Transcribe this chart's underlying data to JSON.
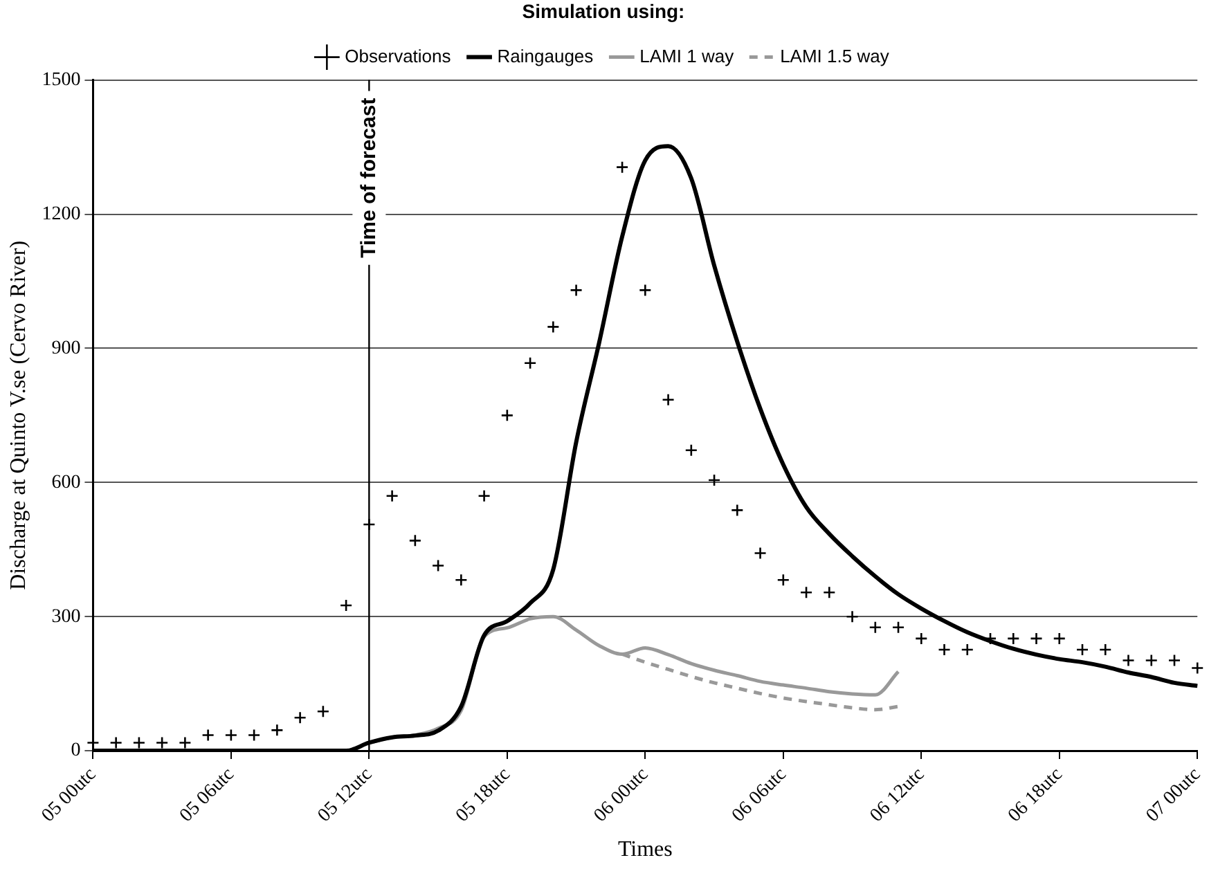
{
  "chart_data": {
    "type": "line",
    "legend_title": "Simulation using:",
    "xlabel": "Times",
    "ylabel": "Discharge at Quinto V.se (Cervo River)",
    "categories": [
      "05 00utc",
      null,
      null,
      null,
      null,
      null,
      "05 06utc",
      null,
      null,
      null,
      null,
      null,
      "05 12utc",
      null,
      null,
      null,
      null,
      null,
      "05 18utc",
      null,
      null,
      null,
      null,
      null,
      "06 00utc",
      null,
      null,
      null,
      null,
      null,
      "06 06utc",
      null,
      null,
      null,
      null,
      null,
      "06 12utc",
      null,
      null,
      null,
      null,
      null,
      "06 18utc",
      null,
      null,
      null,
      null,
      null,
      "07 00utc"
    ],
    "ylim": [
      0,
      1500
    ],
    "yticks": [
      0,
      300,
      600,
      900,
      1200,
      1500
    ],
    "grid": "y",
    "legend": "top",
    "ref_lines": [
      {
        "axis": "x",
        "value": "05 12utc",
        "label": "Time of forecast",
        "color": "#000000"
      }
    ],
    "series": [
      {
        "name": "Observations",
        "type": "scatter",
        "marker": "cross",
        "color": "#000000",
        "values": [
          18,
          18,
          18,
          18,
          18,
          35,
          35,
          35,
          46,
          74,
          88,
          325,
          506,
          570,
          470,
          414,
          382,
          570,
          750,
          867,
          948,
          1030,
          null,
          1305,
          1030,
          785,
          672,
          605,
          538,
          442,
          382,
          354,
          354,
          300,
          276,
          276,
          251,
          226,
          226,
          251,
          251,
          251,
          251,
          226,
          226,
          202,
          202,
          202,
          185
        ]
      },
      {
        "name": "Raingauges",
        "type": "line",
        "marker": "none",
        "line_style": "solid",
        "color": "#000000",
        "values": [
          0,
          0,
          0,
          0,
          0,
          0,
          0,
          0,
          0,
          0,
          0,
          0,
          18,
          30,
          34,
          45,
          99,
          258,
          290,
          330,
          405,
          690,
          913,
          1150,
          1320,
          1352,
          1280,
          1085,
          915,
          765,
          640,
          545,
          485,
          435,
          390,
          350,
          318,
          290,
          265,
          245,
          228,
          215,
          205,
          198,
          188,
          175,
          165,
          152,
          145
        ]
      },
      {
        "name": "LAMI 1 way",
        "type": "line",
        "marker": "none",
        "line_style": "solid",
        "color": "#999999",
        "values": [
          null,
          null,
          null,
          null,
          null,
          null,
          null,
          null,
          null,
          null,
          null,
          null,
          18,
          30,
          35,
          50,
          90,
          255,
          275,
          295,
          300,
          270,
          235,
          216,
          230,
          215,
          195,
          180,
          168,
          155,
          147,
          140,
          132,
          127,
          125,
          177,
          null,
          null,
          null,
          null,
          null,
          null,
          null,
          null,
          null,
          null,
          null,
          null,
          null
        ]
      },
      {
        "name": "LAMI 1.5 way",
        "type": "line",
        "marker": "none",
        "line_style": "dashed",
        "color": "#999999",
        "values": [
          null,
          null,
          null,
          null,
          null,
          null,
          null,
          null,
          null,
          null,
          null,
          null,
          null,
          null,
          null,
          null,
          null,
          null,
          null,
          null,
          null,
          null,
          null,
          216,
          198,
          182,
          166,
          152,
          140,
          128,
          118,
          110,
          103,
          96,
          92,
          99,
          null,
          null,
          null,
          null,
          null,
          null,
          null,
          null,
          null,
          null,
          null,
          null,
          null
        ]
      }
    ]
  }
}
